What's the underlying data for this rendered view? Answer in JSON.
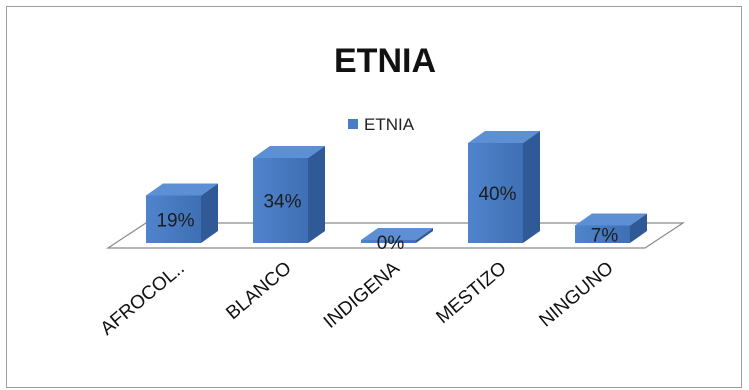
{
  "chart_data": {
    "type": "bar",
    "title": "ETNIA",
    "categories": [
      "AFROCOL..",
      "BLANCO",
      "INDIGENA",
      "MESTIZO",
      "NINGUNO"
    ],
    "series": [
      {
        "name": "ETNIA",
        "values": [
          19,
          34,
          0,
          40,
          7
        ],
        "color": "#4a7cc4"
      }
    ],
    "data_labels": [
      "19%",
      "34%",
      "0%",
      "40%",
      "7%"
    ],
    "legend_position": "top",
    "three_d": true,
    "grid": false
  }
}
